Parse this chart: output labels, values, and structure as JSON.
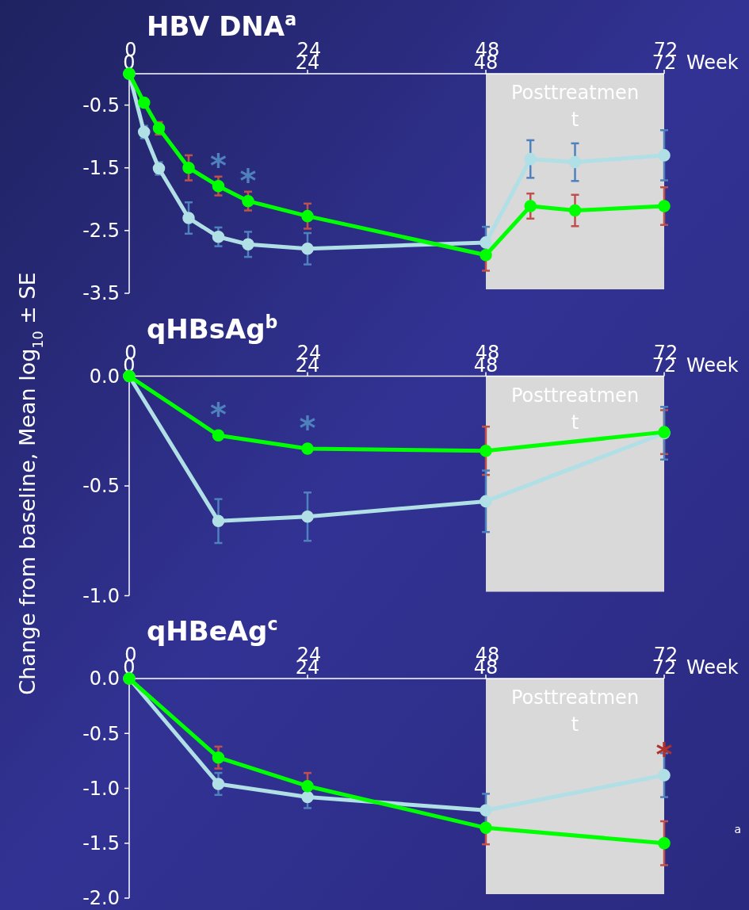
{
  "chart_data": [
    {
      "type": "line",
      "title": "HBV DNA$^{a}$",
      "xlabel": "Week",
      "x": [
        0,
        2,
        4,
        8,
        12,
        16,
        24,
        48,
        54,
        60,
        72
      ],
      "xlim": [
        0,
        72
      ],
      "xticks": [
        0,
        24,
        48,
        72
      ],
      "x2lim": [
        0,
        72
      ],
      "x2ticks": [
        0,
        24,
        48,
        72
      ],
      "ylim": [
        -3.5,
        0
      ],
      "yticks": [
        -0.5,
        -1.5,
        -2.5,
        -3.5
      ],
      "marker": "circle",
      "grid": false,
      "series": [
        {
          "color": "#00ff00",
          "values": [
            0,
            -0.46,
            -0.87,
            -1.5,
            -1.79,
            -2.03,
            -2.27,
            -2.89,
            -2.11,
            -2.18,
            -2.11
          ],
          "errors": [
            null,
            null,
            0.1,
            0.2,
            0.15,
            0.15,
            0.2,
            0.25,
            0.2,
            0.25,
            0.3
          ]
        },
        {
          "color": "#b0dfe5",
          "values": [
            0,
            -0.93,
            -1.51,
            -2.3,
            -2.6,
            -2.72,
            -2.79,
            -2.69,
            -1.36,
            -1.41,
            -1.3
          ],
          "errors": [
            null,
            0.1,
            0.1,
            0.25,
            0.15,
            0.2,
            0.25,
            0.25,
            0.3,
            0.3,
            0.4
          ]
        }
      ],
      "bands": [
        {
          "axis": "x",
          "from": 48,
          "to": 72,
          "label": "Posttreatment",
          "color": "#d9d9d9"
        }
      ],
      "annotations": [
        {
          "text": "*",
          "x": 12,
          "y": -1.79
        },
        {
          "text": "*",
          "x": 16,
          "y": -2.03
        }
      ]
    },
    {
      "type": "line",
      "title": "qHBsAg$^{b}$",
      "xlabel": "Week",
      "ylabel": "Change from baseline, Mean log$_{10}$ ± SE",
      "x": [
        0,
        12,
        24,
        48,
        72
      ],
      "xlim": [
        0,
        72
      ],
      "xticks": [
        0,
        24,
        48,
        72
      ],
      "x2lim": [
        0,
        72
      ],
      "x2ticks": [
        0,
        24,
        48,
        72
      ],
      "ylim": [
        -1.0,
        0
      ],
      "yticks": [
        {
          "value": 0,
          "label": "0.0"
        },
        -0.5,
        {
          "value": -1,
          "label": "-1.0"
        }
      ],
      "marker": "circle",
      "grid": false,
      "series": [
        {
          "color": "#00ff00",
          "values": [
            0,
            -0.27,
            -0.33,
            -0.34,
            -0.255
          ],
          "errors": [
            null,
            null,
            null,
            0.11,
            0.1
          ]
        },
        {
          "color": "#b0dfe5",
          "values": [
            0,
            -0.66,
            -0.64,
            -0.57,
            -0.26
          ],
          "errors": [
            null,
            0.1,
            0.11,
            0.14,
            0.12
          ]
        }
      ],
      "bands": [
        {
          "axis": "x",
          "from": 48,
          "to": 72,
          "label": "Posttreatment",
          "color": "#d9d9d9"
        }
      ],
      "annotations": [
        {
          "text": "*",
          "x": 12,
          "y": -0.27
        },
        {
          "text": "*",
          "x": 24,
          "y": -0.33
        }
      ]
    },
    {
      "type": "line",
      "title": "qHBeAg$^{c}$",
      "xlabel": "Week",
      "x": [
        0,
        12,
        24,
        48,
        72
      ],
      "xlim": [
        0,
        72
      ],
      "xticks": [
        0,
        24,
        48,
        72
      ],
      "x2lim": [
        0,
        72
      ],
      "x2ticks": [
        0,
        24,
        48,
        72
      ],
      "ylim": [
        -2.0,
        0
      ],
      "yticks": [
        {
          "value": 0,
          "label": "0.0"
        },
        -0.5,
        {
          "value": -1,
          "label": "-1.0"
        },
        -1.5,
        {
          "value": -2,
          "label": "-2.0"
        }
      ],
      "marker": "circle",
      "grid": false,
      "series": [
        {
          "color": "#00ff00",
          "values": [
            0,
            -0.72,
            -0.98,
            -1.36,
            -1.5
          ],
          "errors": [
            null,
            0.1,
            0.12,
            0.15,
            0.2
          ]
        },
        {
          "color": "#b0dfe5",
          "values": [
            0,
            -0.96,
            -1.08,
            -1.2,
            -0.88
          ],
          "errors": [
            null,
            0.1,
            0.1,
            0.15,
            0.2
          ]
        }
      ],
      "bands": [
        {
          "axis": "x",
          "from": 48,
          "to": 72,
          "label": "Posttreatment",
          "color": "#d9d9d9"
        }
      ],
      "annotations": [
        {
          "text": "*",
          "x": 72,
          "y": -0.88
        },
        "a"
      ]
    }
  ]
}
